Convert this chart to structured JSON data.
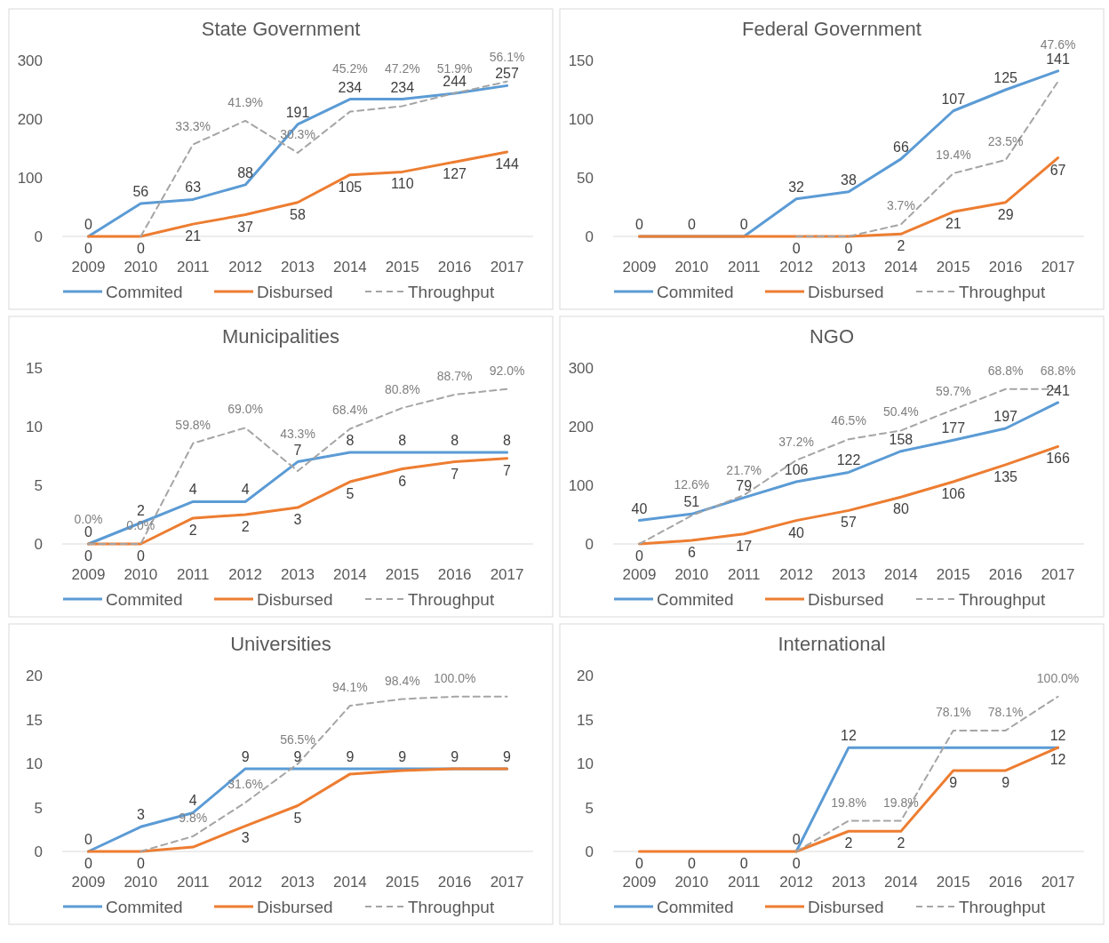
{
  "chart_data": [
    {
      "type": "line",
      "title": "State Government",
      "categories": [
        "2009",
        "2010",
        "2011",
        "2012",
        "2013",
        "2014",
        "2015",
        "2016",
        "2017"
      ],
      "ylim": [
        0,
        300
      ],
      "yticks": [
        0,
        100,
        200,
        300
      ],
      "legend": "bottom",
      "grid": false,
      "series": [
        {
          "name": "Commited",
          "color": "#5b9bd5",
          "values": [
            0,
            56,
            63,
            88,
            191,
            234,
            234,
            244,
            257
          ],
          "value_labels": [
            "0",
            "56",
            "63",
            "88",
            "191",
            "234",
            "234",
            "244",
            "257"
          ]
        },
        {
          "name": "Disbursed",
          "color": "#ed7d31",
          "values": [
            0,
            0,
            21,
            37,
            58,
            105,
            110,
            127,
            144
          ],
          "value_labels": [
            "0",
            "0",
            "21",
            "37",
            "58",
            "105",
            "110",
            "127",
            "144"
          ]
        },
        {
          "name": "Throughput",
          "color": "#a5a5a5",
          "axis": "y2",
          "line_style": "dashed",
          "values": [
            null,
            0,
            33.3,
            41.9,
            30.3,
            45.2,
            47.2,
            51.9,
            56.1
          ],
          "value_labels": [
            null,
            null,
            "33.3%",
            "41.9%",
            "30.3%",
            "45.2%",
            "47.2%",
            "51.9%",
            "56.1%"
          ]
        }
      ]
    },
    {
      "type": "line",
      "title": "Federal Government",
      "categories": [
        "2009",
        "2010",
        "2011",
        "2012",
        "2013",
        "2014",
        "2015",
        "2016",
        "2017"
      ],
      "ylim": [
        0,
        150
      ],
      "yticks": [
        0,
        50,
        100,
        150
      ],
      "legend": "bottom",
      "grid": false,
      "series": [
        {
          "name": "Commited",
          "color": "#5b9bd5",
          "values": [
            0,
            0,
            0,
            32,
            38,
            66,
            107,
            125,
            141
          ],
          "value_labels": [
            "0",
            "0",
            "0",
            "32",
            "38",
            "66",
            "107",
            "125",
            "141"
          ]
        },
        {
          "name": "Disbursed",
          "color": "#ed7d31",
          "values": [
            0,
            0,
            0,
            0,
            0,
            2,
            21,
            29,
            67
          ],
          "value_labels": [
            null,
            null,
            null,
            "0",
            "0",
            "2",
            "21",
            "29",
            "67"
          ]
        },
        {
          "name": "Throughput",
          "color": "#a5a5a5",
          "axis": "y2",
          "line_style": "dashed",
          "values": [
            null,
            null,
            null,
            0,
            0,
            3.7,
            19.4,
            23.5,
            47.6
          ],
          "value_labels": [
            null,
            null,
            null,
            null,
            null,
            "3.7%",
            "19.4%",
            "23.5%",
            "47.6%"
          ]
        }
      ]
    },
    {
      "type": "line",
      "title": "Municipalities",
      "categories": [
        "2009",
        "2010",
        "2011",
        "2012",
        "2013",
        "2014",
        "2015",
        "2016",
        "2017"
      ],
      "ylim": [
        0,
        15
      ],
      "yticks": [
        0,
        5,
        10,
        15
      ],
      "legend": "bottom",
      "grid": false,
      "series": [
        {
          "name": "Commited",
          "color": "#5b9bd5",
          "values": [
            0,
            1.8,
            3.6,
            3.6,
            7,
            7.8,
            7.8,
            7.8,
            7.8
          ],
          "value_labels": [
            "0",
            "2",
            "4",
            "4",
            "7",
            "8",
            "8",
            "8",
            "8"
          ]
        },
        {
          "name": "Disbursed",
          "color": "#ed7d31",
          "values": [
            0,
            0,
            2.2,
            2.5,
            3.1,
            5.3,
            6.4,
            7,
            7.3
          ],
          "value_labels": [
            "0",
            "0",
            "2",
            "2",
            "3",
            "5",
            "6",
            "7",
            "7"
          ]
        },
        {
          "name": "Throughput",
          "color": "#a5a5a5",
          "axis": "y2",
          "line_style": "dashed",
          "values": [
            0,
            0,
            59.8,
            69,
            43.3,
            68.4,
            80.8,
            88.7,
            92
          ],
          "value_labels": [
            "0.0%",
            "0.0%",
            "59.8%",
            "69.0%",
            "43.3%",
            "68.4%",
            "80.8%",
            "88.7%",
            "92.0%"
          ]
        }
      ]
    },
    {
      "type": "line",
      "title": "NGO",
      "categories": [
        "2009",
        "2010",
        "2011",
        "2012",
        "2013",
        "2014",
        "2015",
        "2016",
        "2017"
      ],
      "ylim": [
        0,
        300
      ],
      "yticks": [
        0,
        100,
        200,
        300
      ],
      "legend": "bottom",
      "grid": false,
      "series": [
        {
          "name": "Commited",
          "color": "#5b9bd5",
          "values": [
            40,
            51,
            79,
            106,
            122,
            158,
            177,
            197,
            241
          ],
          "value_labels": [
            "40",
            "51",
            "79",
            "106",
            "122",
            "158",
            "177",
            "197",
            "241"
          ]
        },
        {
          "name": "Disbursed",
          "color": "#ed7d31",
          "values": [
            0,
            6,
            17,
            40,
            57,
            80,
            106,
            135,
            166
          ],
          "value_labels": [
            "0",
            "6",
            "17",
            "40",
            "57",
            "80",
            "106",
            "135",
            "166"
          ]
        },
        {
          "name": "Throughput",
          "color": "#a5a5a5",
          "axis": "y2",
          "line_style": "dashed",
          "values": [
            0,
            12.6,
            21.7,
            37.2,
            46.5,
            50.4,
            59.7,
            68.8,
            68.8
          ],
          "value_labels": [
            null,
            "12.6%",
            "21.7%",
            "37.2%",
            "46.5%",
            "50.4%",
            "59.7%",
            "68.8%",
            "68.8%"
          ]
        }
      ]
    },
    {
      "type": "line",
      "title": "Universities",
      "categories": [
        "2009",
        "2010",
        "2011",
        "2012",
        "2013",
        "2014",
        "2015",
        "2016",
        "2017"
      ],
      "ylim": [
        0,
        20
      ],
      "yticks": [
        0,
        5,
        10,
        15,
        20
      ],
      "legend": "bottom",
      "grid": false,
      "series": [
        {
          "name": "Commited",
          "color": "#5b9bd5",
          "values": [
            0,
            2.8,
            4.4,
            9.4,
            9.4,
            9.4,
            9.4,
            9.4,
            9.4
          ],
          "value_labels": [
            "0",
            "3",
            "4",
            "9",
            "9",
            "9",
            "9",
            "9",
            "9"
          ]
        },
        {
          "name": "Disbursed",
          "color": "#ed7d31",
          "values": [
            0,
            0,
            0.5,
            2.9,
            5.2,
            8.8,
            9.2,
            9.4,
            9.4
          ],
          "value_labels": [
            "0",
            "0",
            null,
            "3",
            "5",
            null,
            null,
            null,
            null
          ]
        },
        {
          "name": "Throughput",
          "color": "#a5a5a5",
          "axis": "y2",
          "line_style": "dashed",
          "values": [
            null,
            0,
            9.8,
            31.6,
            56.5,
            94.1,
            98.4,
            100,
            100
          ],
          "value_labels": [
            null,
            null,
            "9.8%",
            "31.6%",
            "56.5%",
            "94.1%",
            "98.4%",
            "100.0%",
            null
          ]
        }
      ]
    },
    {
      "type": "line",
      "title": "International",
      "categories": [
        "2009",
        "2010",
        "2011",
        "2012",
        "2013",
        "2014",
        "2015",
        "2016",
        "2017"
      ],
      "ylim": [
        0,
        20
      ],
      "yticks": [
        0,
        5,
        10,
        15,
        20
      ],
      "legend": "bottom",
      "grid": false,
      "series": [
        {
          "name": "Commited",
          "color": "#5b9bd5",
          "values": [
            null,
            null,
            null,
            0,
            11.8,
            11.8,
            11.8,
            11.8,
            11.8
          ],
          "value_labels": [
            null,
            null,
            null,
            "0",
            "12",
            null,
            null,
            null,
            "12"
          ]
        },
        {
          "name": "Disbursed",
          "color": "#ed7d31",
          "values": [
            0,
            0,
            0,
            0,
            2.3,
            2.3,
            9.2,
            9.2,
            11.8
          ],
          "value_labels": [
            "0",
            "0",
            "0",
            "0",
            "2",
            "2",
            "9",
            "9",
            "12"
          ]
        },
        {
          "name": "Throughput",
          "color": "#a5a5a5",
          "axis": "y2",
          "line_style": "dashed",
          "values": [
            null,
            null,
            null,
            0,
            19.8,
            19.8,
            78.1,
            78.1,
            100
          ],
          "value_labels": [
            null,
            null,
            null,
            null,
            "19.8%",
            "19.8%",
            "78.1%",
            "78.1%",
            "100.0%"
          ]
        }
      ]
    }
  ]
}
